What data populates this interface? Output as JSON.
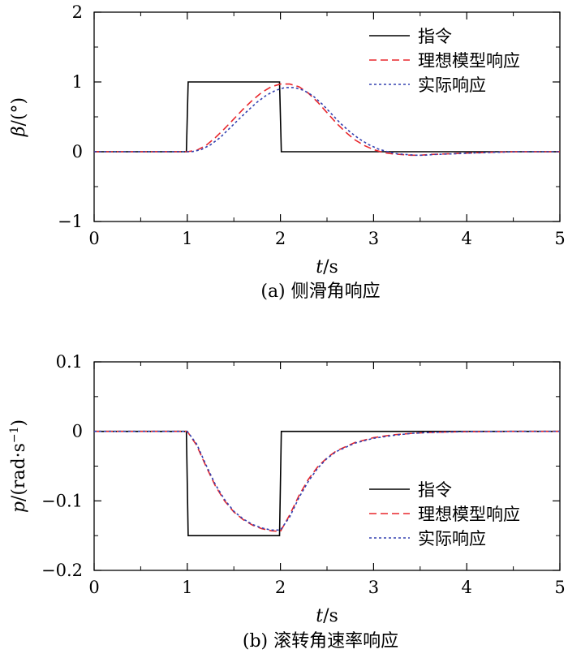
{
  "chart_data": [
    {
      "type": "line",
      "caption": "(a) 侧滑角响应",
      "xlabel": {
        "var": "t",
        "unit": "/s"
      },
      "ylabel": {
        "var": "β",
        "unit": "/(°)"
      },
      "xlim": [
        0,
        5
      ],
      "ylim": [
        -1,
        2
      ],
      "xticks": [
        0,
        1,
        2,
        3,
        4,
        5
      ],
      "yticks": [
        -1,
        0,
        1,
        2
      ],
      "ytick_labels": [
        "−1",
        "0",
        "1",
        "2"
      ],
      "grid": false,
      "legend_position": "top-right",
      "series": [
        {
          "name": "指令",
          "color": "#000000",
          "dash": "solid",
          "x": [
            0,
            0.99,
            1.01,
            1.99,
            2.01,
            5
          ],
          "y": [
            0,
            0,
            1,
            1,
            0,
            0
          ]
        },
        {
          "name": "理想模型响应",
          "color": "#e8262b",
          "dash": "dashed",
          "x": [
            0,
            1.0,
            1.1,
            1.2,
            1.3,
            1.4,
            1.5,
            1.6,
            1.7,
            1.8,
            1.9,
            2.0,
            2.1,
            2.2,
            2.3,
            2.4,
            2.5,
            2.6,
            2.7,
            2.8,
            2.9,
            3.0,
            3.1,
            3.2,
            3.3,
            3.4,
            3.5,
            3.6,
            3.8,
            4.0,
            4.2,
            4.5,
            5.0
          ],
          "y": [
            0,
            0,
            0.02,
            0.09,
            0.2,
            0.33,
            0.47,
            0.61,
            0.74,
            0.85,
            0.93,
            0.97,
            0.97,
            0.93,
            0.84,
            0.71,
            0.56,
            0.41,
            0.28,
            0.17,
            0.09,
            0.03,
            -0.01,
            -0.03,
            -0.04,
            -0.05,
            -0.05,
            -0.04,
            -0.03,
            -0.02,
            -0.01,
            0,
            0
          ]
        },
        {
          "name": "实际响应",
          "color": "#3340b0",
          "dash": "dotted",
          "x": [
            0,
            1.05,
            1.15,
            1.25,
            1.35,
            1.45,
            1.55,
            1.65,
            1.75,
            1.85,
            1.95,
            2.05,
            2.15,
            2.25,
            2.35,
            2.45,
            2.55,
            2.65,
            2.75,
            2.85,
            2.95,
            3.05,
            3.15,
            3.25,
            3.35,
            3.45,
            3.55,
            3.65,
            3.85,
            4.05,
            4.25,
            4.55,
            5.0
          ],
          "y": [
            0,
            0,
            0.03,
            0.1,
            0.2,
            0.33,
            0.46,
            0.59,
            0.71,
            0.81,
            0.88,
            0.92,
            0.92,
            0.88,
            0.8,
            0.68,
            0.54,
            0.4,
            0.28,
            0.18,
            0.1,
            0.04,
            0,
            -0.03,
            -0.04,
            -0.05,
            -0.05,
            -0.04,
            -0.03,
            -0.02,
            -0.01,
            0,
            0
          ]
        }
      ]
    },
    {
      "type": "line",
      "caption": "(b) 滚转角速率响应",
      "xlabel": {
        "var": "t",
        "unit": "/s"
      },
      "ylabel": {
        "var": "p",
        "unit": "/(rad·s",
        "sup": "−1",
        "close": ")"
      },
      "xlim": [
        0,
        5
      ],
      "ylim": [
        -0.2,
        0.1
      ],
      "xticks": [
        0,
        1,
        2,
        3,
        4,
        5
      ],
      "yticks": [
        -0.2,
        -0.1,
        0,
        0.1
      ],
      "ytick_labels": [
        "−0.2",
        "−0.1",
        "0",
        "0.1"
      ],
      "grid": false,
      "legend_position": "bottom-right",
      "series": [
        {
          "name": "指令",
          "color": "#000000",
          "dash": "solid",
          "x": [
            0,
            0.99,
            1.01,
            1.99,
            2.01,
            5
          ],
          "y": [
            0,
            0,
            -0.15,
            -0.15,
            0,
            0
          ]
        },
        {
          "name": "理想模型响应",
          "color": "#e8262b",
          "dash": "dashed",
          "x": [
            0,
            1.0,
            1.1,
            1.2,
            1.3,
            1.4,
            1.5,
            1.6,
            1.7,
            1.8,
            1.9,
            2.0,
            2.1,
            2.2,
            2.3,
            2.4,
            2.5,
            2.6,
            2.8,
            3.0,
            3.2,
            3.4,
            3.6,
            3.8,
            4.0,
            4.5,
            5.0
          ],
          "y": [
            0,
            0,
            -0.02,
            -0.05,
            -0.078,
            -0.1,
            -0.116,
            -0.127,
            -0.135,
            -0.14,
            -0.143,
            -0.144,
            -0.12,
            -0.092,
            -0.069,
            -0.051,
            -0.038,
            -0.028,
            -0.016,
            -0.009,
            -0.005,
            -0.003,
            -0.0015,
            -0.0008,
            -0.0004,
            0,
            0
          ]
        },
        {
          "name": "实际响应",
          "color": "#3340b0",
          "dash": "dotted",
          "x": [
            0,
            1.0,
            1.1,
            1.2,
            1.3,
            1.4,
            1.5,
            1.6,
            1.7,
            1.8,
            1.9,
            2.0,
            2.1,
            2.2,
            2.3,
            2.4,
            2.5,
            2.6,
            2.8,
            3.0,
            3.2,
            3.4,
            3.6,
            3.8,
            4.0,
            4.5,
            5.0
          ],
          "y": [
            0,
            0,
            -0.018,
            -0.048,
            -0.076,
            -0.098,
            -0.115,
            -0.126,
            -0.134,
            -0.139,
            -0.142,
            -0.142,
            -0.123,
            -0.095,
            -0.072,
            -0.053,
            -0.039,
            -0.029,
            -0.017,
            -0.01,
            -0.006,
            -0.003,
            -0.0016,
            -0.0008,
            -0.0004,
            0,
            0
          ]
        }
      ]
    }
  ]
}
